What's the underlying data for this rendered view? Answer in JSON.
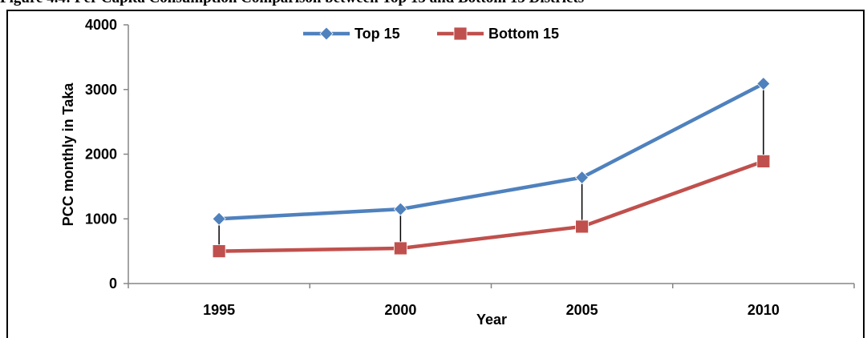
{
  "caption": "Figure 4.4: Per Capita Consumption Comparison between Top 15 and Bottom 15 Districts",
  "chart_data": {
    "type": "line",
    "categories": [
      "1995",
      "2000",
      "2005",
      "2010"
    ],
    "series": [
      {
        "name": "Top 15",
        "values": [
          1000,
          1150,
          1640,
          3090
        ],
        "color": "#4F81BD",
        "marker": "diamond"
      },
      {
        "name": "Bottom 15",
        "values": [
          500,
          545,
          880,
          1890
        ],
        "color": "#C0504D",
        "marker": "square"
      }
    ],
    "title": "",
    "xlabel": "Year",
    "ylabel": "PCC monthly in Taka",
    "ylim": [
      0,
      4000
    ],
    "yticks": [
      "0",
      "1000",
      "2000",
      "3000",
      "4000"
    ],
    "gridlines": false,
    "drop_lines": true,
    "legend_position": "top"
  }
}
